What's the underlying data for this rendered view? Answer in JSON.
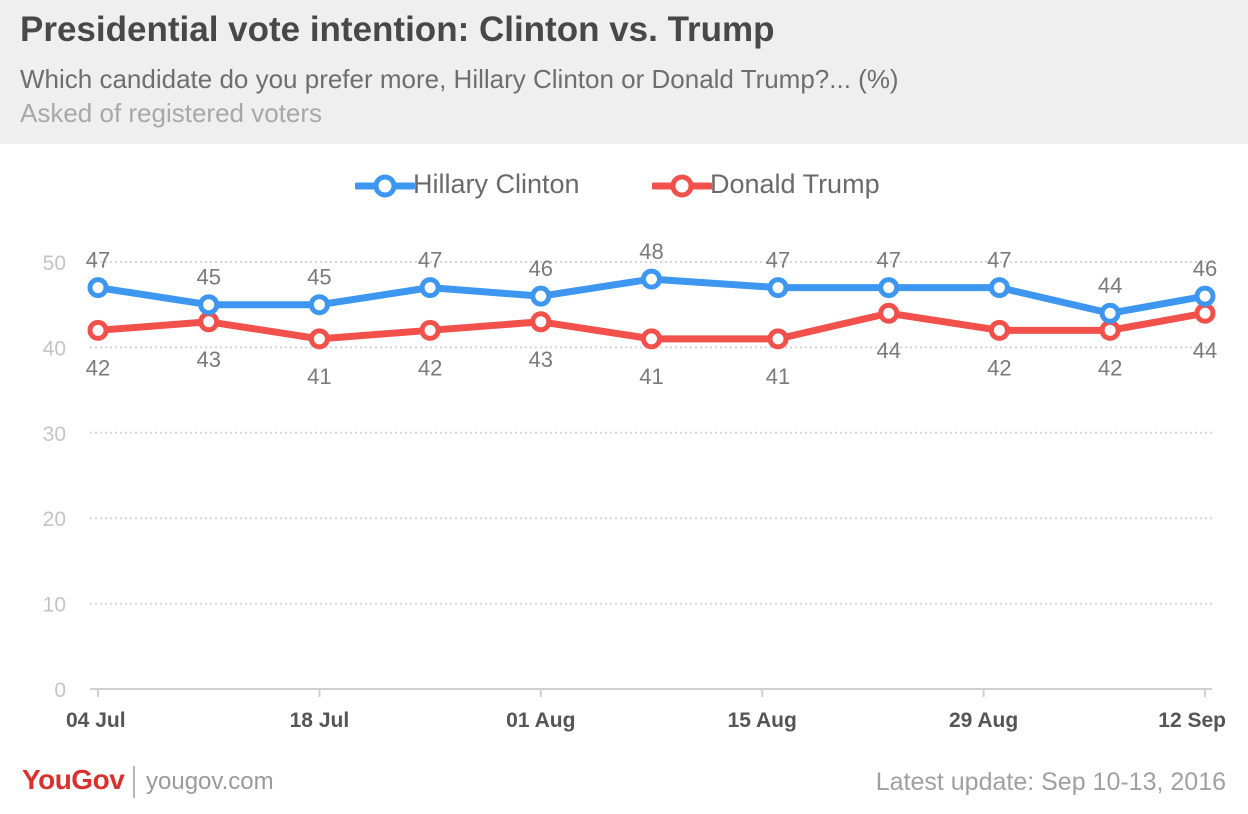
{
  "header": {
    "title": "Presidential vote intention: Clinton vs. Trump",
    "subtitle": "Which candidate do you prefer more, Hillary Clinton or Donald Trump?... (%)",
    "note": "Asked of registered voters"
  },
  "chart_data": {
    "type": "line",
    "x": [
      "2016-07-04",
      "2016-07-11",
      "2016-07-18",
      "2016-07-25",
      "2016-08-01",
      "2016-08-08",
      "2016-08-16",
      "2016-08-23",
      "2016-08-30",
      "2016-09-06",
      "2016-09-12"
    ],
    "x_tick_labels": [
      "04 Jul",
      "18 Jul",
      "01 Aug",
      "15 Aug",
      "29 Aug",
      "12 Sep"
    ],
    "x_tick_dates": [
      "2016-07-04",
      "2016-07-18",
      "2016-08-01",
      "2016-08-15",
      "2016-08-29",
      "2016-09-12"
    ],
    "y_ticks": [
      "0",
      "10",
      "20",
      "30",
      "40",
      "50"
    ],
    "ylim": [
      0,
      50
    ],
    "grid": true,
    "legend_position": "top-center",
    "series": [
      {
        "name": "Hillary Clinton",
        "color": "#3d97f0",
        "values": [
          47,
          45,
          45,
          47,
          46,
          48,
          47,
          47,
          47,
          44,
          46
        ],
        "label_position": "above"
      },
      {
        "name": "Donald Trump",
        "color": "#f2504b",
        "values": [
          42,
          43,
          41,
          42,
          43,
          41,
          41,
          44,
          42,
          42,
          44
        ],
        "label_position": "below"
      }
    ]
  },
  "footer": {
    "brand": "YouGov",
    "site": "yougov.com",
    "update": "Latest update: Sep 10-13, 2016"
  }
}
